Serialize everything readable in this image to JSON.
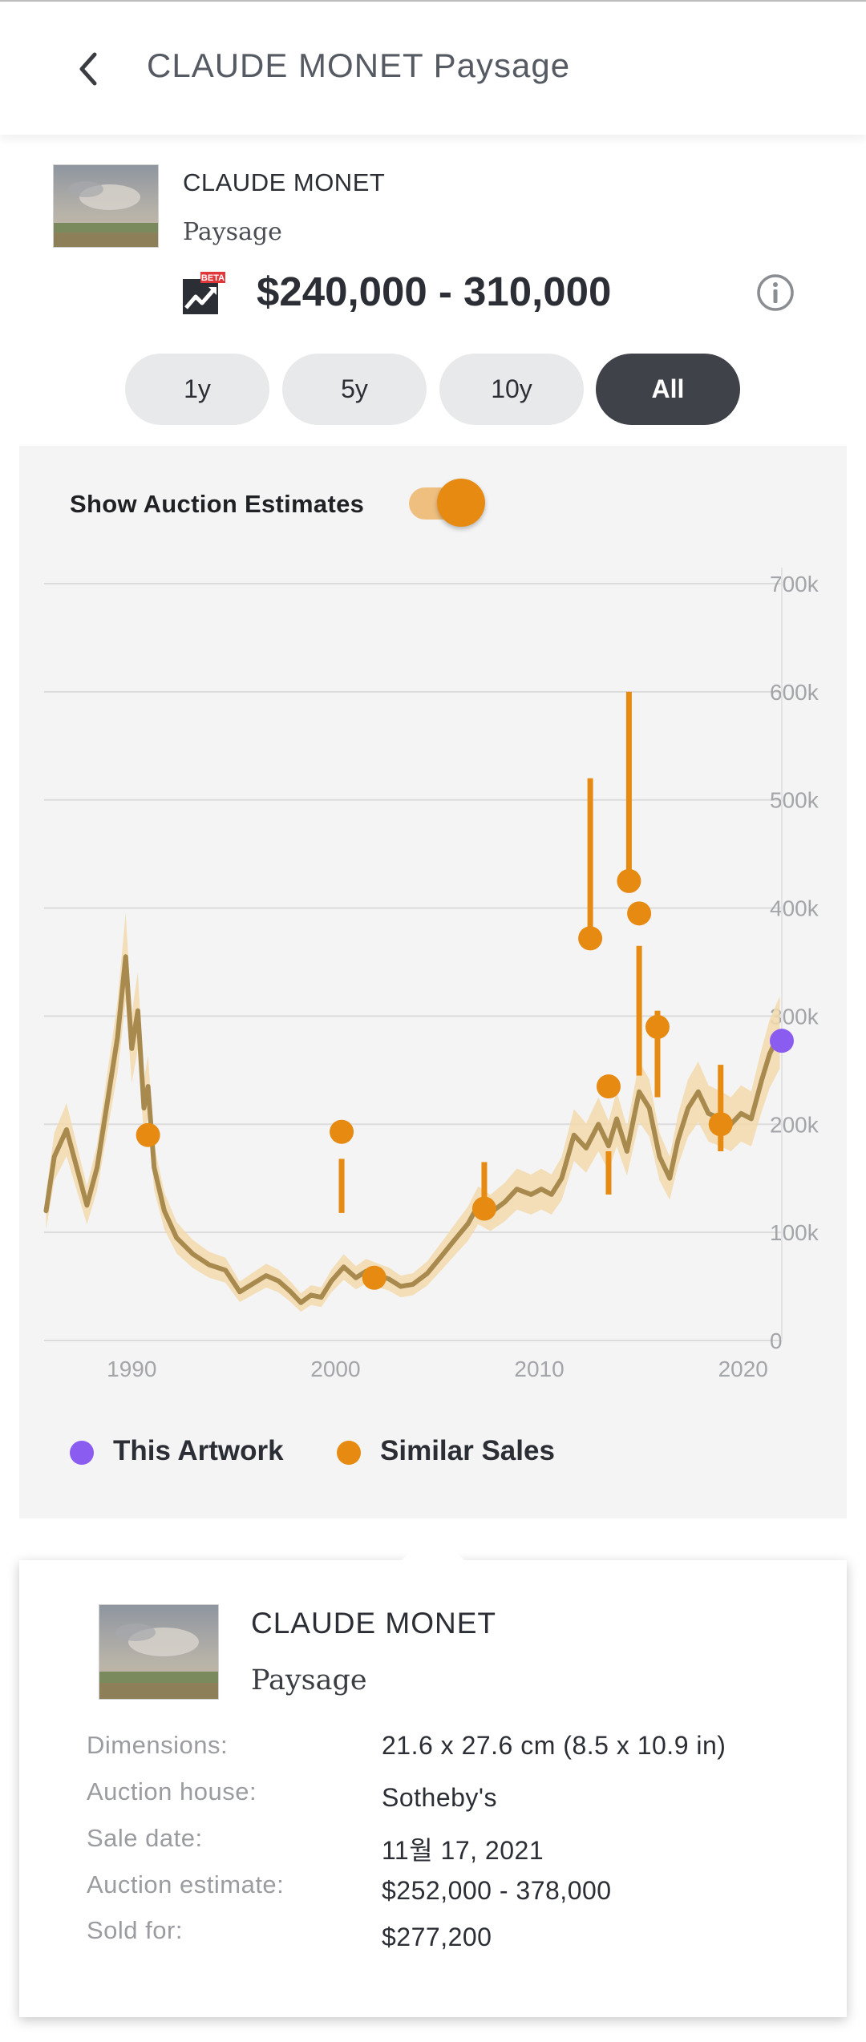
{
  "header": {
    "title": "CLAUDE MONET Paysage"
  },
  "artwork": {
    "artist": "CLAUDE MONET",
    "title": "Paysage",
    "estimate_range": "$240,000 - 310,000",
    "beta_badge": "BETA"
  },
  "range_tabs": [
    {
      "label": "1y",
      "active": false
    },
    {
      "label": "5y",
      "active": false
    },
    {
      "label": "10y",
      "active": false
    },
    {
      "label": "All",
      "active": true
    }
  ],
  "toggle": {
    "label": "Show Auction Estimates",
    "on": true
  },
  "legend": {
    "this_artwork": "This Artwork",
    "similar_sales": "Similar Sales"
  },
  "colors": {
    "accent": "#e68a12",
    "this_artwork": "#8a5cf0",
    "trend_line": "#a88a4f",
    "band": "#f2d9ac",
    "dark_button": "#3f4249"
  },
  "chart_data": {
    "type": "line",
    "title": "",
    "xlabel": "",
    "ylabel": "",
    "x_ticks": [
      "1990",
      "2000",
      "2010",
      "2020"
    ],
    "y_ticks": [
      "0",
      "100k",
      "200k",
      "300k",
      "400k",
      "500k",
      "600k",
      "700k"
    ],
    "xlim": [
      1985.7,
      2021.9
    ],
    "ylim": [
      0,
      700000
    ],
    "trend": {
      "name": "Price trend",
      "points": [
        [
          1985.8,
          120000
        ],
        [
          1986.2,
          170000
        ],
        [
          1986.8,
          195000
        ],
        [
          1987.3,
          160000
        ],
        [
          1987.8,
          125000
        ],
        [
          1988.3,
          160000
        ],
        [
          1988.8,
          220000
        ],
        [
          1989.3,
          280000
        ],
        [
          1989.7,
          355000
        ],
        [
          1990.0,
          270000
        ],
        [
          1990.3,
          305000
        ],
        [
          1990.6,
          215000
        ],
        [
          1990.8,
          235000
        ],
        [
          1991.1,
          160000
        ],
        [
          1991.6,
          120000
        ],
        [
          1992.2,
          95000
        ],
        [
          1993.0,
          80000
        ],
        [
          1993.8,
          70000
        ],
        [
          1994.6,
          65000
        ],
        [
          1995.3,
          45000
        ],
        [
          1995.9,
          52000
        ],
        [
          1996.6,
          60000
        ],
        [
          1997.2,
          55000
        ],
        [
          1997.8,
          45000
        ],
        [
          1998.3,
          35000
        ],
        [
          1998.8,
          42000
        ],
        [
          1999.3,
          40000
        ],
        [
          1999.8,
          55000
        ],
        [
          2000.4,
          68000
        ],
        [
          2001.0,
          58000
        ],
        [
          2001.5,
          64000
        ],
        [
          2002.1,
          60000
        ],
        [
          2002.6,
          57000
        ],
        [
          2003.2,
          50000
        ],
        [
          2003.8,
          52000
        ],
        [
          2004.5,
          62000
        ],
        [
          2005.2,
          78000
        ],
        [
          2005.8,
          92000
        ],
        [
          2006.5,
          108000
        ],
        [
          2007.0,
          125000
        ],
        [
          2007.6,
          118000
        ],
        [
          2008.3,
          128000
        ],
        [
          2008.9,
          140000
        ],
        [
          2009.6,
          135000
        ],
        [
          2010.1,
          140000
        ],
        [
          2010.6,
          135000
        ],
        [
          2011.1,
          150000
        ],
        [
          2011.7,
          190000
        ],
        [
          2012.3,
          178000
        ],
        [
          2012.9,
          200000
        ],
        [
          2013.4,
          180000
        ],
        [
          2013.8,
          205000
        ],
        [
          2014.3,
          175000
        ],
        [
          2014.9,
          230000
        ],
        [
          2015.4,
          215000
        ],
        [
          2015.9,
          170000
        ],
        [
          2016.4,
          150000
        ],
        [
          2016.8,
          185000
        ],
        [
          2017.3,
          215000
        ],
        [
          2017.8,
          230000
        ],
        [
          2018.3,
          210000
        ],
        [
          2018.9,
          205000
        ],
        [
          2019.4,
          200000
        ],
        [
          2019.9,
          210000
        ],
        [
          2020.4,
          205000
        ],
        [
          2020.9,
          240000
        ],
        [
          2021.3,
          265000
        ],
        [
          2021.8,
          285000
        ]
      ]
    },
    "series": [
      {
        "name": "Similar Sales",
        "sales": [
          {
            "year": 1990.8,
            "sold": 190000,
            "est_low": 185000,
            "est_high": 190000
          },
          {
            "year": 2000.3,
            "sold": 193000,
            "est_low": 118000,
            "est_high": 168000
          },
          {
            "year": 2001.9,
            "sold": 58000,
            "est_low": 50000,
            "est_high": 60000
          },
          {
            "year": 2007.3,
            "sold": 122000,
            "est_low": 120000,
            "est_high": 165000
          },
          {
            "year": 2012.5,
            "sold": 372000,
            "est_low": 372000,
            "est_high": 520000
          },
          {
            "year": 2013.4,
            "sold": 235000,
            "est_low": 135000,
            "est_high": 175000
          },
          {
            "year": 2014.4,
            "sold": 425000,
            "est_low": 425000,
            "est_high": 600000
          },
          {
            "year": 2014.9,
            "sold": 395000,
            "est_low": 245000,
            "est_high": 365000
          },
          {
            "year": 2015.8,
            "sold": 290000,
            "est_low": 225000,
            "est_high": 305000
          },
          {
            "year": 2018.9,
            "sold": 200000,
            "est_low": 175000,
            "est_high": 255000
          }
        ]
      },
      {
        "name": "This Artwork",
        "sales": [
          {
            "year": 2021.9,
            "sold": 277200
          }
        ]
      }
    ]
  },
  "popover": {
    "artist": "CLAUDE MONET",
    "title": "Paysage",
    "details": [
      {
        "label": "Dimensions:",
        "value": "21.6 x 27.6 cm (8.5 x 10.9 in)"
      },
      {
        "label": "Auction house:",
        "value": "Sotheby's"
      },
      {
        "label": "Sale date:",
        "value": "11월 17, 2021"
      },
      {
        "label": "Auction estimate:",
        "value": "$252,000 - 378,000"
      },
      {
        "label": "Sold for:",
        "value": "$277,200"
      }
    ]
  }
}
